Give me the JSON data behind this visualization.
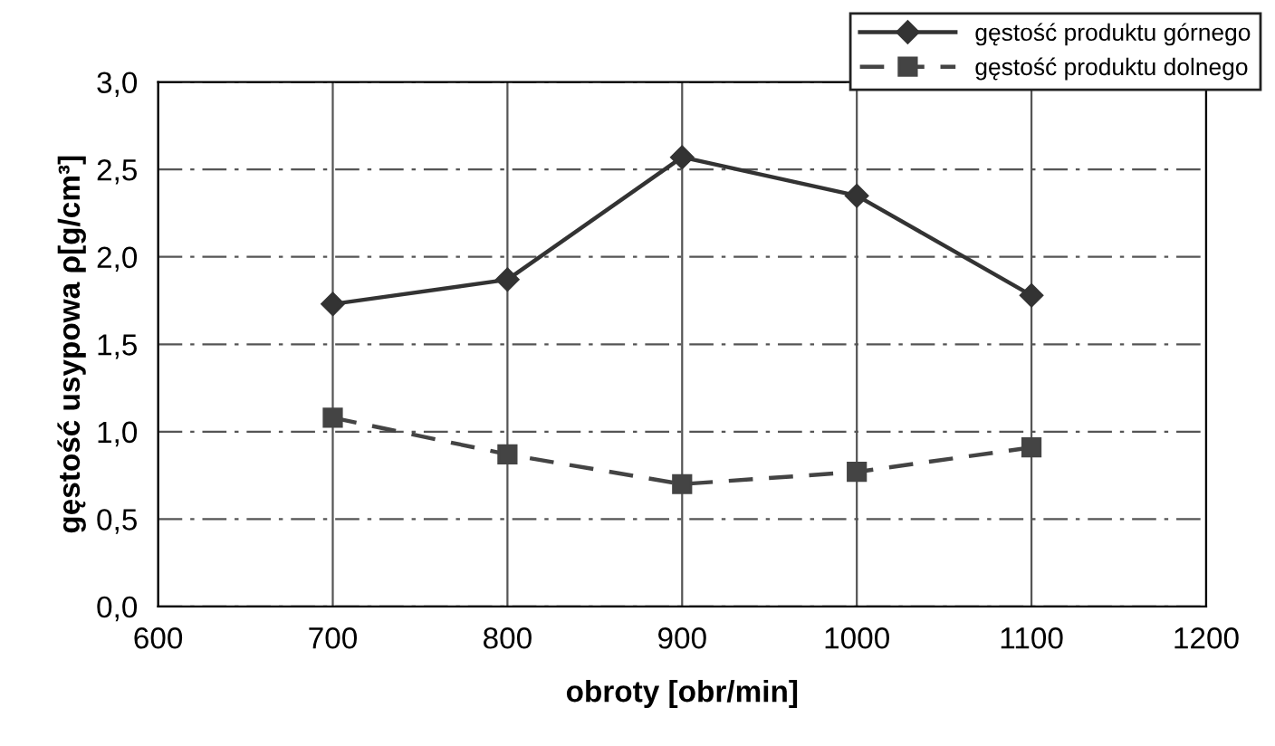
{
  "chart_data": {
    "type": "line",
    "xlabel": "obroty [obr/min]",
    "ylabel": "gęstość usypowa ρ[g/cm³]",
    "x": [
      700,
      800,
      900,
      1000,
      1100
    ],
    "series": [
      {
        "name": "gęstość produktu górnego",
        "color": "#333333",
        "values": [
          1.73,
          1.87,
          2.57,
          2.35,
          1.78
        ],
        "marker": "diamond",
        "line_style": "solid"
      },
      {
        "name": "gęstość produktu dolnego",
        "color": "#444444",
        "values": [
          1.08,
          0.87,
          0.7,
          0.77,
          0.91
        ],
        "marker": "square",
        "line_style": "dashed"
      }
    ],
    "xlim": [
      600,
      1200
    ],
    "xticks": [
      600,
      700,
      800,
      900,
      1000,
      1100,
      1200
    ],
    "ylim": [
      0,
      3
    ],
    "yticks": [
      {
        "value": 0,
        "label": "0,0"
      },
      {
        "value": 0.5,
        "label": "0,5"
      },
      {
        "value": 1,
        "label": "1,0"
      },
      {
        "value": 1.5,
        "label": "1,5"
      },
      {
        "value": 2,
        "label": "2,0"
      },
      {
        "value": 2.5,
        "label": "2,5"
      },
      {
        "value": 3,
        "label": "3,0"
      }
    ],
    "grid": true,
    "legend": "top right"
  }
}
